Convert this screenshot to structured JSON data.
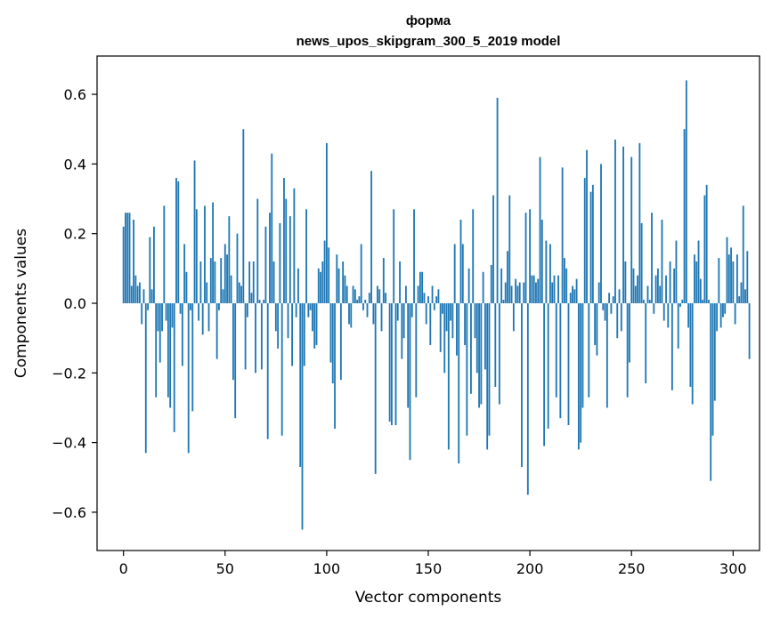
{
  "chart_data": {
    "type": "bar",
    "title_line1": "форма",
    "title_line2": "news_upos_skipgram_300_5_2019 model",
    "xlabel": "Vector components",
    "ylabel": "Components values",
    "xlim": [
      -13,
      313
    ],
    "ylim": [
      -0.71,
      0.71
    ],
    "x_ticks": [
      0,
      50,
      100,
      150,
      200,
      250,
      300
    ],
    "y_ticks": [
      -0.6,
      -0.4,
      -0.2,
      0.0,
      0.2,
      0.4,
      0.6
    ],
    "y_tick_labels": [
      "−0.6",
      "−0.4",
      "−0.2",
      "0.0",
      "0.2",
      "0.4",
      "0.6"
    ],
    "bar_color": "#1f77b4",
    "grid": false,
    "legend": false,
    "values": [
      0.22,
      0.26,
      0.26,
      0.26,
      0.05,
      0.24,
      0.08,
      0.05,
      0.06,
      -0.06,
      0.04,
      -0.43,
      -0.02,
      0.19,
      0.04,
      0.22,
      -0.27,
      -0.08,
      -0.17,
      -0.08,
      0.28,
      -0.05,
      -0.27,
      -0.3,
      -0.07,
      -0.37,
      0.36,
      0.35,
      -0.03,
      -0.18,
      0.17,
      0.09,
      -0.43,
      -0.02,
      -0.31,
      0.41,
      0.27,
      -0.05,
      0.12,
      -0.09,
      0.28,
      0.06,
      -0.08,
      0.13,
      0.29,
      0.12,
      -0.16,
      -0.02,
      0.13,
      0.04,
      0.17,
      0.14,
      0.25,
      0.08,
      -0.22,
      -0.33,
      0.2,
      0.06,
      0.05,
      0.5,
      -0.19,
      -0.04,
      0.12,
      0.03,
      0.12,
      -0.2,
      0.3,
      0.01,
      -0.19,
      0.01,
      0.22,
      -0.39,
      0.26,
      0.43,
      0.12,
      -0.08,
      -0.13,
      0.23,
      -0.38,
      0.36,
      0.3,
      -0.1,
      0.25,
      -0.18,
      0.33,
      -0.04,
      0.1,
      -0.47,
      -0.65,
      -0.18,
      0.27,
      -0.04,
      -0.02,
      -0.08,
      -0.13,
      -0.12,
      0.1,
      0.09,
      0.12,
      0.18,
      0.46,
      0.16,
      -0.17,
      -0.23,
      -0.36,
      0.14,
      0.1,
      -0.22,
      0.12,
      0.08,
      0.05,
      -0.06,
      -0.07,
      0.05,
      0.04,
      0.01,
      0.02,
      0.17,
      -0.02,
      0.01,
      -0.04,
      0.03,
      0.38,
      -0.06,
      -0.49,
      0.05,
      0.04,
      -0.08,
      0.13,
      0.03,
      0.0,
      -0.34,
      -0.35,
      0.27,
      -0.35,
      -0.05,
      0.12,
      -0.16,
      -0.1,
      0.05,
      -0.3,
      -0.45,
      -0.04,
      0.27,
      -0.27,
      0.05,
      0.09,
      0.09,
      0.03,
      -0.06,
      0.02,
      -0.12,
      0.05,
      -0.02,
      0.02,
      0.04,
      -0.14,
      -0.03,
      -0.2,
      -0.08,
      -0.42,
      -0.05,
      -0.1,
      0.17,
      -0.15,
      -0.46,
      0.24,
      0.17,
      -0.12,
      -0.38,
      0.1,
      -0.26,
      0.27,
      -0.1,
      -0.2,
      -0.3,
      -0.29,
      0.09,
      -0.19,
      -0.42,
      -0.38,
      0.11,
      0.31,
      -0.24,
      0.59,
      -0.29,
      0.1,
      0.01,
      0.06,
      0.15,
      0.31,
      0.05,
      -0.08,
      0.07,
      0.05,
      0.06,
      -0.47,
      0.06,
      0.26,
      -0.55,
      0.27,
      0.08,
      0.08,
      0.06,
      0.07,
      0.42,
      0.24,
      -0.41,
      0.18,
      -0.36,
      0.17,
      0.06,
      0.08,
      -0.27,
      0.08,
      -0.33,
      0.39,
      0.13,
      0.1,
      -0.35,
      0.03,
      0.05,
      0.04,
      0.07,
      -0.42,
      -0.4,
      -0.3,
      0.36,
      0.44,
      -0.27,
      0.32,
      0.34,
      -0.12,
      -0.15,
      0.06,
      0.4,
      -0.02,
      -0.05,
      -0.3,
      0.03,
      -0.03,
      0.02,
      0.47,
      -0.1,
      0.04,
      -0.08,
      0.45,
      0.12,
      -0.27,
      -0.17,
      0.42,
      0.1,
      0.05,
      0.08,
      0.46,
      0.23,
      0.01,
      -0.23,
      0.05,
      0.01,
      0.26,
      -0.03,
      0.08,
      0.1,
      0.05,
      0.24,
      -0.05,
      0.08,
      -0.07,
      0.12,
      -0.25,
      0.1,
      0.18,
      -0.13,
      -0.01,
      0.01,
      0.5,
      0.64,
      -0.07,
      -0.24,
      -0.29,
      0.14,
      0.12,
      0.18,
      0.07,
      0.01,
      0.31,
      0.34,
      0.01,
      -0.51,
      -0.38,
      -0.28,
      -0.08,
      0.13,
      -0.07,
      -0.04,
      -0.03,
      0.19,
      0.14,
      0.16,
      0.12,
      -0.06,
      0.14,
      0.02,
      0.06,
      0.28,
      0.04,
      0.15,
      -0.16
    ]
  }
}
